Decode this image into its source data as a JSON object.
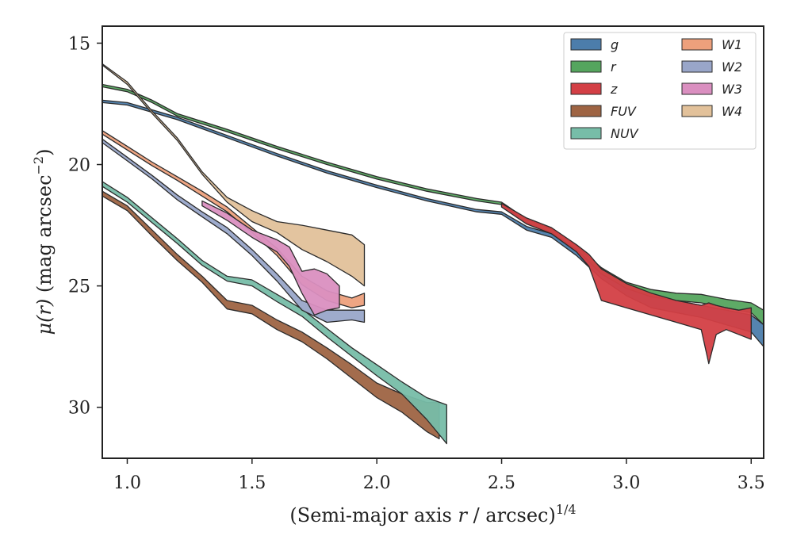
{
  "chart_data": {
    "type": "area",
    "xlabel": "(Semi-major axis r / arcsec)^1/4",
    "xlabel_parts": {
      "prefix": "(Semi-major axis ",
      "var": "r",
      "middle": " / arcsec)",
      "sup": "1/4"
    },
    "ylabel": "μ(r) (mag arcsec^-2)",
    "ylabel_parts": {
      "var": "μ(r)",
      "text": " (mag arcsec",
      "sup": "−2",
      "close": ")"
    },
    "xlim": [
      0.9,
      3.55
    ],
    "ylim": [
      32.1,
      14.3
    ],
    "y_inverted": true,
    "xticks": [
      1.0,
      1.5,
      2.0,
      2.5,
      3.0,
      3.5
    ],
    "xtick_labels": [
      "1.0",
      "1.5",
      "2.0",
      "2.5",
      "3.0",
      "3.5"
    ],
    "yticks": [
      15,
      20,
      25,
      30
    ],
    "ytick_labels": [
      "15",
      "20",
      "25",
      "30"
    ],
    "grid": false,
    "legend_position": "top-right",
    "legend_columns": 2,
    "series": [
      {
        "name": "g",
        "color": "#4c7dab",
        "band": [
          [
            0.9,
            17.35,
            17.45
          ],
          [
            1.0,
            17.45,
            17.55
          ],
          [
            1.2,
            18.05,
            18.15
          ],
          [
            1.4,
            18.8,
            18.9
          ],
          [
            1.6,
            19.55,
            19.65
          ],
          [
            1.8,
            20.25,
            20.35
          ],
          [
            2.0,
            20.85,
            20.95
          ],
          [
            2.2,
            21.4,
            21.5
          ],
          [
            2.4,
            21.85,
            21.95
          ],
          [
            2.5,
            21.95,
            22.05
          ],
          [
            2.6,
            22.55,
            22.7
          ],
          [
            2.7,
            22.85,
            23.0
          ],
          [
            2.8,
            23.55,
            23.75
          ],
          [
            2.9,
            24.3,
            24.7
          ],
          [
            3.0,
            25.0,
            25.4
          ],
          [
            3.1,
            25.4,
            25.9
          ],
          [
            3.2,
            25.6,
            26.1
          ],
          [
            3.3,
            25.8,
            26.3
          ],
          [
            3.4,
            26.0,
            26.6
          ],
          [
            3.5,
            26.2,
            26.9
          ],
          [
            3.55,
            26.6,
            27.5
          ]
        ]
      },
      {
        "name": "r",
        "color": "#55a55e",
        "band": [
          [
            0.9,
            16.7,
            16.8
          ],
          [
            1.0,
            16.9,
            17.0
          ],
          [
            1.1,
            17.35,
            17.45
          ],
          [
            1.2,
            17.9,
            18.0
          ],
          [
            1.4,
            18.55,
            18.65
          ],
          [
            1.6,
            19.25,
            19.35
          ],
          [
            1.8,
            19.9,
            20.0
          ],
          [
            2.0,
            20.5,
            20.6
          ],
          [
            2.2,
            21.0,
            21.1
          ],
          [
            2.4,
            21.4,
            21.5
          ],
          [
            2.5,
            21.55,
            21.65
          ],
          [
            2.6,
            22.25,
            22.4
          ],
          [
            2.7,
            22.65,
            22.8
          ],
          [
            2.8,
            23.35,
            23.5
          ],
          [
            2.9,
            24.25,
            24.5
          ],
          [
            3.0,
            24.85,
            25.1
          ],
          [
            3.1,
            25.15,
            25.45
          ],
          [
            3.2,
            25.3,
            25.6
          ],
          [
            3.3,
            25.35,
            25.7
          ],
          [
            3.4,
            25.55,
            25.9
          ],
          [
            3.5,
            25.7,
            26.1
          ],
          [
            3.55,
            26.0,
            26.6
          ]
        ]
      },
      {
        "name": "z",
        "color": "#d33f45",
        "band": [
          [
            2.5,
            21.6,
            21.75
          ],
          [
            2.6,
            22.2,
            22.45
          ],
          [
            2.7,
            22.6,
            22.85
          ],
          [
            2.8,
            23.3,
            23.6
          ],
          [
            2.85,
            23.7,
            24.2
          ],
          [
            2.9,
            24.3,
            25.6
          ],
          [
            3.0,
            24.9,
            25.9
          ],
          [
            3.1,
            25.3,
            26.2
          ],
          [
            3.2,
            25.6,
            26.5
          ],
          [
            3.3,
            25.8,
            26.8
          ],
          [
            3.33,
            25.7,
            28.2
          ],
          [
            3.36,
            25.8,
            27.0
          ],
          [
            3.4,
            25.9,
            26.8
          ],
          [
            3.45,
            26.0,
            27.0
          ],
          [
            3.5,
            25.9,
            27.2
          ]
        ]
      },
      {
        "name": "FUV",
        "color": "#9e6443",
        "band": [
          [
            0.9,
            21.1,
            21.3
          ],
          [
            1.0,
            21.7,
            21.9
          ],
          [
            1.1,
            22.7,
            22.95
          ],
          [
            1.2,
            23.7,
            23.95
          ],
          [
            1.3,
            24.6,
            24.85
          ],
          [
            1.4,
            25.6,
            25.95
          ],
          [
            1.5,
            25.8,
            26.15
          ],
          [
            1.6,
            26.4,
            26.8
          ],
          [
            1.7,
            26.9,
            27.3
          ],
          [
            1.8,
            27.55,
            28.0
          ],
          [
            1.9,
            28.25,
            28.8
          ],
          [
            2.0,
            29.0,
            29.6
          ],
          [
            2.1,
            29.45,
            30.2
          ],
          [
            2.2,
            29.8,
            31.0
          ],
          [
            2.25,
            29.8,
            31.3
          ]
        ]
      },
      {
        "name": "NUV",
        "color": "#77bda8",
        "band": [
          [
            0.9,
            20.7,
            20.9
          ],
          [
            1.0,
            21.35,
            21.55
          ],
          [
            1.1,
            22.2,
            22.4
          ],
          [
            1.2,
            23.05,
            23.25
          ],
          [
            1.3,
            23.95,
            24.15
          ],
          [
            1.4,
            24.6,
            24.8
          ],
          [
            1.5,
            24.75,
            25.0
          ],
          [
            1.6,
            25.35,
            25.65
          ],
          [
            1.7,
            25.95,
            26.25
          ],
          [
            1.8,
            26.75,
            27.1
          ],
          [
            1.9,
            27.55,
            27.9
          ],
          [
            2.0,
            28.25,
            28.7
          ],
          [
            2.1,
            28.95,
            29.45
          ],
          [
            2.2,
            29.6,
            30.5
          ],
          [
            2.28,
            29.9,
            31.5
          ]
        ]
      },
      {
        "name": "W1",
        "color": "#eda07c",
        "band": [
          [
            0.9,
            18.6,
            18.75
          ],
          [
            1.0,
            19.25,
            19.4
          ],
          [
            1.1,
            19.9,
            20.05
          ],
          [
            1.2,
            20.5,
            20.65
          ],
          [
            1.3,
            21.1,
            21.3
          ],
          [
            1.4,
            21.75,
            21.95
          ],
          [
            1.5,
            22.6,
            22.8
          ],
          [
            1.6,
            23.45,
            23.75
          ],
          [
            1.7,
            24.6,
            24.95
          ],
          [
            1.8,
            25.2,
            25.6
          ],
          [
            1.9,
            25.5,
            25.9
          ],
          [
            1.95,
            25.3,
            25.8
          ]
        ]
      },
      {
        "name": "W2",
        "color": "#99a6c9",
        "band": [
          [
            0.9,
            18.95,
            19.1
          ],
          [
            1.0,
            19.7,
            19.85
          ],
          [
            1.1,
            20.45,
            20.6
          ],
          [
            1.2,
            21.25,
            21.45
          ],
          [
            1.3,
            21.95,
            22.15
          ],
          [
            1.4,
            22.6,
            22.85
          ],
          [
            1.5,
            23.5,
            23.75
          ],
          [
            1.6,
            24.5,
            24.8
          ],
          [
            1.7,
            25.6,
            26.0
          ],
          [
            1.8,
            26.0,
            26.5
          ],
          [
            1.9,
            26.0,
            26.4
          ],
          [
            1.95,
            26.0,
            26.5
          ]
        ]
      },
      {
        "name": "W3",
        "color": "#da8fc0",
        "band": [
          [
            1.3,
            21.5,
            21.7
          ],
          [
            1.4,
            22.0,
            22.3
          ],
          [
            1.5,
            22.7,
            23.0
          ],
          [
            1.6,
            23.1,
            23.6
          ],
          [
            1.65,
            23.4,
            24.2
          ],
          [
            1.7,
            24.4,
            25.3
          ],
          [
            1.75,
            24.3,
            26.2
          ],
          [
            1.8,
            24.5,
            26.0
          ],
          [
            1.85,
            25.0,
            25.9
          ]
        ]
      },
      {
        "name": "W4",
        "color": "#e2c19a",
        "band": [
          [
            0.9,
            15.85,
            15.9
          ],
          [
            1.0,
            16.6,
            16.7
          ],
          [
            1.1,
            17.8,
            17.9
          ],
          [
            1.2,
            18.9,
            19.0
          ],
          [
            1.3,
            20.3,
            20.4
          ],
          [
            1.4,
            21.35,
            21.55
          ],
          [
            1.5,
            21.9,
            22.35
          ],
          [
            1.6,
            22.35,
            22.8
          ],
          [
            1.7,
            22.5,
            23.5
          ],
          [
            1.8,
            22.7,
            24.0
          ],
          [
            1.9,
            22.9,
            24.6
          ],
          [
            1.95,
            23.3,
            25.0
          ]
        ]
      }
    ]
  },
  "legend_columns_order": [
    [
      "g",
      "r",
      "z",
      "FUV",
      "NUV"
    ],
    [
      "W1",
      "W2",
      "W3",
      "W4"
    ]
  ]
}
